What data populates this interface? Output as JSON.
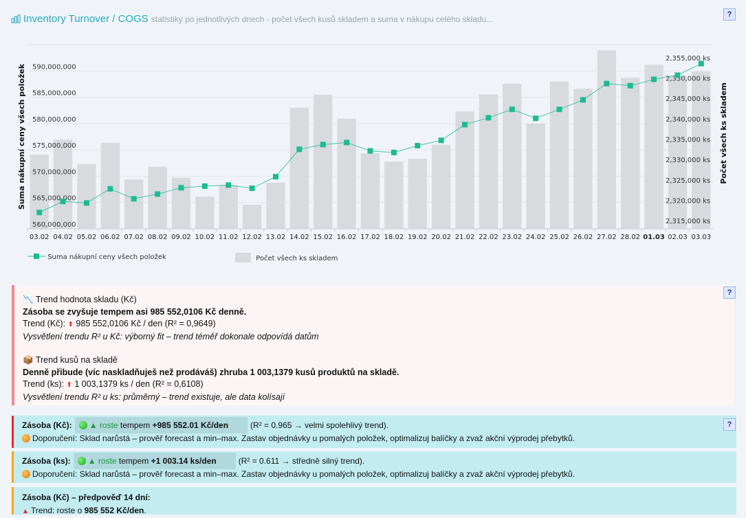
{
  "header": {
    "title": "Inventory Turnover / COGS",
    "subtitle": "statistiky po jednotlivých dnech - počet všech kusů skladem a suma v nákupu celého skladu...",
    "icon": "bar-chart-icon",
    "help": "?"
  },
  "colors": {
    "line": "#1dbb92",
    "bars": "#d8dbde",
    "title": "#26a9bf",
    "alert_red": "#e8262b",
    "alert_orange": "#f5a623",
    "box_bg": "#c3ecf1"
  },
  "chart_data": {
    "type": "bar+line",
    "categories": [
      "03.02",
      "04.02",
      "05.02",
      "06.02",
      "07.02",
      "08.02",
      "09.02",
      "10.02",
      "11.02",
      "12.02",
      "13.02",
      "14.02",
      "15.02",
      "16.02",
      "17.02",
      "18.02",
      "19.02",
      "20.02",
      "21.02",
      "22.02",
      "23.02",
      "24.02",
      "25.02",
      "26.02",
      "27.02",
      "28.02",
      "01.03",
      "02.03",
      "03.03"
    ],
    "highlight_category": "01.03",
    "series": [
      {
        "name": "Suma nákupní ceny všech položek",
        "type": "line",
        "axis": "left",
        "values": [
          563100000,
          565200000,
          564900000,
          567600000,
          565700000,
          566600000,
          567800000,
          568100000,
          568300000,
          567700000,
          569900000,
          575100000,
          576000000,
          576400000,
          574800000,
          574500000,
          575800000,
          576800000,
          579800000,
          581100000,
          582700000,
          581000000,
          582700000,
          584500000,
          587600000,
          587200000,
          588400000,
          589200000,
          591400000
        ]
      },
      {
        "name": "Počet všech ks skladem",
        "type": "bar",
        "axis": "right",
        "values": [
          2332200,
          2335900,
          2329900,
          2335100,
          2326100,
          2329200,
          2326500,
          2321900,
          2324800,
          2319900,
          2325300,
          2343700,
          2346900,
          2341000,
          2332500,
          2330500,
          2331200,
          2334600,
          2342800,
          2347000,
          2349600,
          2339800,
          2350100,
          2348400,
          2357800,
          2351100,
          2354300,
          2351600,
          2352600
        ]
      }
    ],
    "ylabel": "Suma nákupní ceny všech položek",
    "y2label": "Počet všech ks skladem",
    "ylim": [
      560000000,
      595000000
    ],
    "y2lim": [
      2314000,
      2359200
    ],
    "yticks": [
      "560,000,000",
      "565,000,000",
      "570,000,000",
      "575,000,000",
      "580,000,000",
      "585,000,000",
      "590,000,000"
    ],
    "ytick_values": [
      560000000,
      565000000,
      570000000,
      575000000,
      580000000,
      585000000,
      590000000
    ],
    "y2ticks": [
      "2,315,000 ks",
      "2,320,000 ks",
      "2,325,000 ks",
      "2,330,000 ks",
      "2,335,000 ks",
      "2,340,000 ks",
      "2,345,000 ks",
      "2,350,000 ks",
      "2,355,000 ks"
    ],
    "y2tick_values": [
      2315000,
      2320000,
      2325000,
      2330000,
      2335000,
      2340000,
      2345000,
      2350000,
      2355000
    ],
    "grid": true,
    "legend": "bottom-left"
  },
  "trend": {
    "kc": {
      "icon": "chart-down-icon",
      "title": "Trend hodnota skladu (Kč)",
      "headline": "Zásoba se zvyšuje tempem asi 985 552,0106 Kč denně.",
      "label": "Trend (Kč):",
      "value": "985 552,0106 Kč / den (R² = 0,9649)",
      "explain": "Vysvětlení trendu R² u Kč: výborný fit – trend téměř dokonale odpovídá datům"
    },
    "ks": {
      "icon": "package-icon",
      "title": "Trend kusů na skladě",
      "headline": "Denně přibude (víc naskladňuješ než prodáváš) zhruba 1 003,1379 kusů produktů na skladě.",
      "label": "Trend (ks):",
      "value": "1 003,1379 ks / den (R² = 0,6108)",
      "explain": "Vysvětlení trendu R² u ks: průměrný – trend existuje, ale data kolísají"
    }
  },
  "alerts": [
    {
      "label": "Zásoba (Kč):",
      "dir": "▲ roste",
      "tempo": "tempem",
      "rate": "+985 552.01 Kč/den",
      "r2": "(R² = 0.965 → velmi spolehlivý trend).",
      "rec": "Doporučení: Sklad narůstá – prověř forecast a min–max. Zastav objednávky u pomalých položek, optimalizuj balíčky a zvaž akční výprodej přebytků."
    },
    {
      "label": "Zásoba (ks):",
      "dir": "▲ roste",
      "tempo": "tempem",
      "rate": "+1 003.14 ks/den",
      "r2": "(R² = 0.611 → středně silný trend).",
      "rec": "Doporučení: Sklad narůstá – prověř forecast a min–max. Zastav objednávky u pomalých položek, optimalizuj balíčky a zvaž akční výprodej přebytků."
    }
  ],
  "forecast": {
    "title": "Zásoba (Kč) – předpověď 14 dní:",
    "trend_prefix": "Trend: roste o",
    "trend_value": "985 552 Kč/den",
    "trend_suffix": "."
  }
}
